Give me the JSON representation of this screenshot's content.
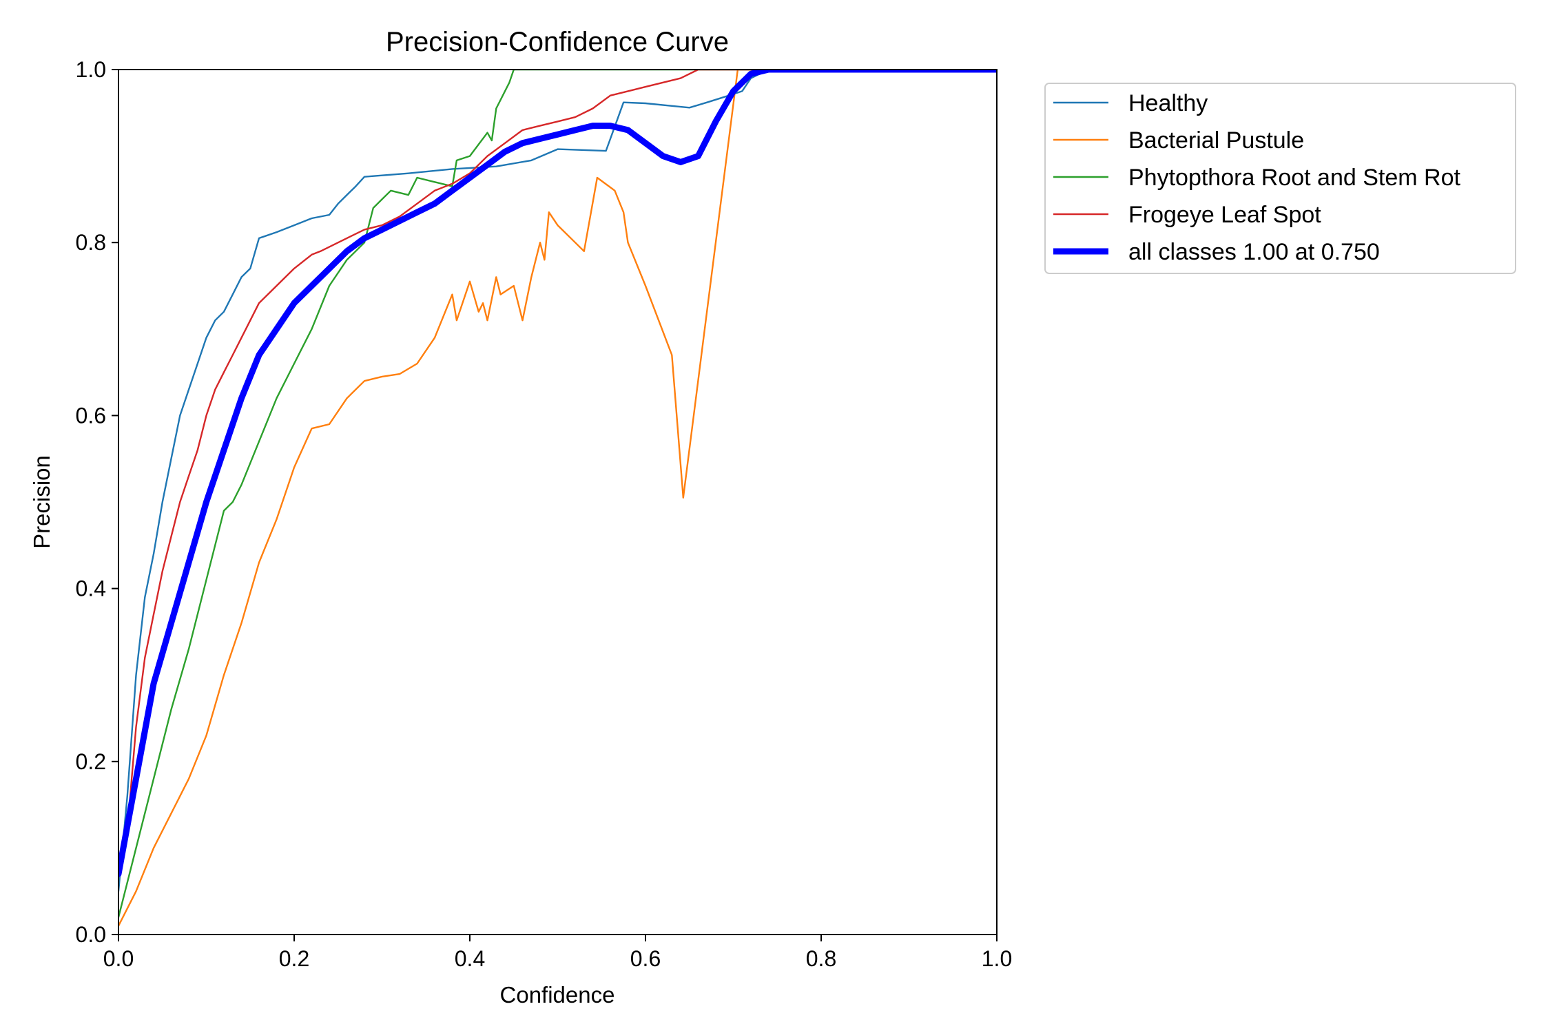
{
  "chart_data": {
    "type": "line",
    "title": "Precision-Confidence Curve",
    "xlabel": "Confidence",
    "ylabel": "Precision",
    "xlim": [
      0,
      1
    ],
    "ylim": [
      0,
      1
    ],
    "x_ticks": [
      "0.0",
      "0.2",
      "0.4",
      "0.6",
      "0.8",
      "1.0"
    ],
    "y_ticks": [
      "0.0",
      "0.2",
      "0.4",
      "0.6",
      "0.8",
      "1.0"
    ],
    "grid": false,
    "legend_position": "outside-top-right",
    "series": [
      {
        "name": "Healthy",
        "color": "#1f77b4",
        "width": "thin",
        "x": [
          0.0,
          0.01,
          0.02,
          0.03,
          0.04,
          0.05,
          0.06,
          0.07,
          0.08,
          0.09,
          0.1,
          0.11,
          0.12,
          0.13,
          0.14,
          0.15,
          0.16,
          0.18,
          0.2,
          0.22,
          0.24,
          0.25,
          0.26,
          0.27,
          0.28,
          0.33,
          0.38,
          0.43,
          0.47,
          0.5,
          0.555,
          0.56,
          0.575,
          0.6,
          0.63,
          0.65,
          0.67,
          0.695,
          0.71,
          0.72,
          0.73,
          0.75,
          0.8,
          1.0
        ],
        "y": [
          0.05,
          0.16,
          0.3,
          0.39,
          0.44,
          0.5,
          0.55,
          0.6,
          0.63,
          0.66,
          0.69,
          0.71,
          0.72,
          0.74,
          0.76,
          0.77,
          0.805,
          0.812,
          0.82,
          0.828,
          0.832,
          0.845,
          0.855,
          0.865,
          0.876,
          0.88,
          0.885,
          0.888,
          0.895,
          0.908,
          0.906,
          0.92,
          0.962,
          0.961,
          0.958,
          0.956,
          0.962,
          0.97,
          0.975,
          0.99,
          0.995,
          1.0,
          1.0,
          1.0
        ]
      },
      {
        "name": "Bacterial Pustule",
        "color": "#ff7f0e",
        "width": "thin",
        "x": [
          0.0,
          0.02,
          0.04,
          0.06,
          0.08,
          0.1,
          0.12,
          0.14,
          0.16,
          0.18,
          0.2,
          0.22,
          0.24,
          0.26,
          0.28,
          0.3,
          0.32,
          0.34,
          0.36,
          0.38,
          0.385,
          0.395,
          0.4,
          0.41,
          0.415,
          0.42,
          0.43,
          0.435,
          0.45,
          0.46,
          0.47,
          0.48,
          0.485,
          0.49,
          0.5,
          0.52,
          0.53,
          0.545,
          0.565,
          0.575,
          0.58,
          0.6,
          0.63,
          0.643,
          0.705,
          0.72,
          0.8,
          1.0
        ],
        "y": [
          0.01,
          0.05,
          0.1,
          0.14,
          0.18,
          0.23,
          0.3,
          0.36,
          0.43,
          0.48,
          0.54,
          0.585,
          0.59,
          0.62,
          0.64,
          0.645,
          0.648,
          0.66,
          0.69,
          0.74,
          0.71,
          0.74,
          0.755,
          0.72,
          0.73,
          0.71,
          0.76,
          0.74,
          0.75,
          0.71,
          0.76,
          0.8,
          0.78,
          0.835,
          0.82,
          0.8,
          0.79,
          0.875,
          0.86,
          0.835,
          0.8,
          0.75,
          0.67,
          0.505,
          1.0,
          1.0,
          1.0,
          1.0
        ]
      },
      {
        "name": "Phytopthora Root and Stem Rot",
        "color": "#2ca02c",
        "width": "thin",
        "x": [
          0.0,
          0.02,
          0.04,
          0.06,
          0.08,
          0.1,
          0.12,
          0.13,
          0.14,
          0.16,
          0.18,
          0.2,
          0.22,
          0.24,
          0.26,
          0.27,
          0.28,
          0.29,
          0.3,
          0.31,
          0.33,
          0.34,
          0.36,
          0.38,
          0.385,
          0.4,
          0.42,
          0.425,
          0.43,
          0.445,
          0.45,
          0.5,
          0.8,
          1.0
        ],
        "y": [
          0.02,
          0.1,
          0.18,
          0.26,
          0.33,
          0.41,
          0.49,
          0.5,
          0.52,
          0.57,
          0.62,
          0.66,
          0.7,
          0.75,
          0.78,
          0.79,
          0.8,
          0.84,
          0.85,
          0.86,
          0.855,
          0.875,
          0.87,
          0.865,
          0.895,
          0.9,
          0.927,
          0.918,
          0.955,
          0.985,
          1.0,
          1.0,
          1.0,
          1.0
        ]
      },
      {
        "name": "Frogeye Leaf Spot",
        "color": "#d62728",
        "width": "thin",
        "x": [
          0.0,
          0.01,
          0.02,
          0.03,
          0.04,
          0.05,
          0.06,
          0.07,
          0.08,
          0.09,
          0.1,
          0.11,
          0.12,
          0.13,
          0.14,
          0.15,
          0.16,
          0.18,
          0.2,
          0.22,
          0.23,
          0.25,
          0.26,
          0.28,
          0.3,
          0.32,
          0.34,
          0.36,
          0.38,
          0.4,
          0.42,
          0.44,
          0.46,
          0.48,
          0.5,
          0.52,
          0.54,
          0.56,
          0.58,
          0.6,
          0.62,
          0.64,
          0.66,
          0.69,
          0.7,
          0.8,
          1.0
        ],
        "y": [
          0.08,
          0.12,
          0.24,
          0.32,
          0.37,
          0.42,
          0.46,
          0.5,
          0.53,
          0.56,
          0.6,
          0.63,
          0.65,
          0.67,
          0.69,
          0.71,
          0.73,
          0.75,
          0.77,
          0.786,
          0.79,
          0.8,
          0.805,
          0.815,
          0.82,
          0.83,
          0.845,
          0.86,
          0.868,
          0.88,
          0.9,
          0.915,
          0.93,
          0.935,
          0.94,
          0.945,
          0.955,
          0.97,
          0.975,
          0.98,
          0.985,
          0.99,
          1.0,
          1.0,
          1.0,
          1.0,
          1.0
        ]
      },
      {
        "name": "all classes 1.00 at 0.750",
        "color": "#0000ff",
        "width": "thick",
        "x": [
          0.0,
          0.02,
          0.04,
          0.06,
          0.08,
          0.1,
          0.12,
          0.14,
          0.16,
          0.18,
          0.2,
          0.22,
          0.24,
          0.26,
          0.28,
          0.3,
          0.32,
          0.34,
          0.36,
          0.38,
          0.4,
          0.42,
          0.44,
          0.46,
          0.48,
          0.5,
          0.52,
          0.54,
          0.56,
          0.58,
          0.6,
          0.62,
          0.64,
          0.66,
          0.68,
          0.7,
          0.72,
          0.74,
          0.75,
          0.8,
          0.9,
          1.0
        ],
        "y": [
          0.07,
          0.18,
          0.29,
          0.36,
          0.43,
          0.5,
          0.56,
          0.62,
          0.67,
          0.7,
          0.73,
          0.75,
          0.77,
          0.79,
          0.805,
          0.815,
          0.825,
          0.835,
          0.845,
          0.86,
          0.875,
          0.89,
          0.905,
          0.915,
          0.92,
          0.925,
          0.93,
          0.935,
          0.935,
          0.93,
          0.915,
          0.9,
          0.893,
          0.9,
          0.94,
          0.975,
          0.995,
          1.0,
          1.0,
          1.0,
          1.0,
          1.0
        ]
      }
    ]
  }
}
